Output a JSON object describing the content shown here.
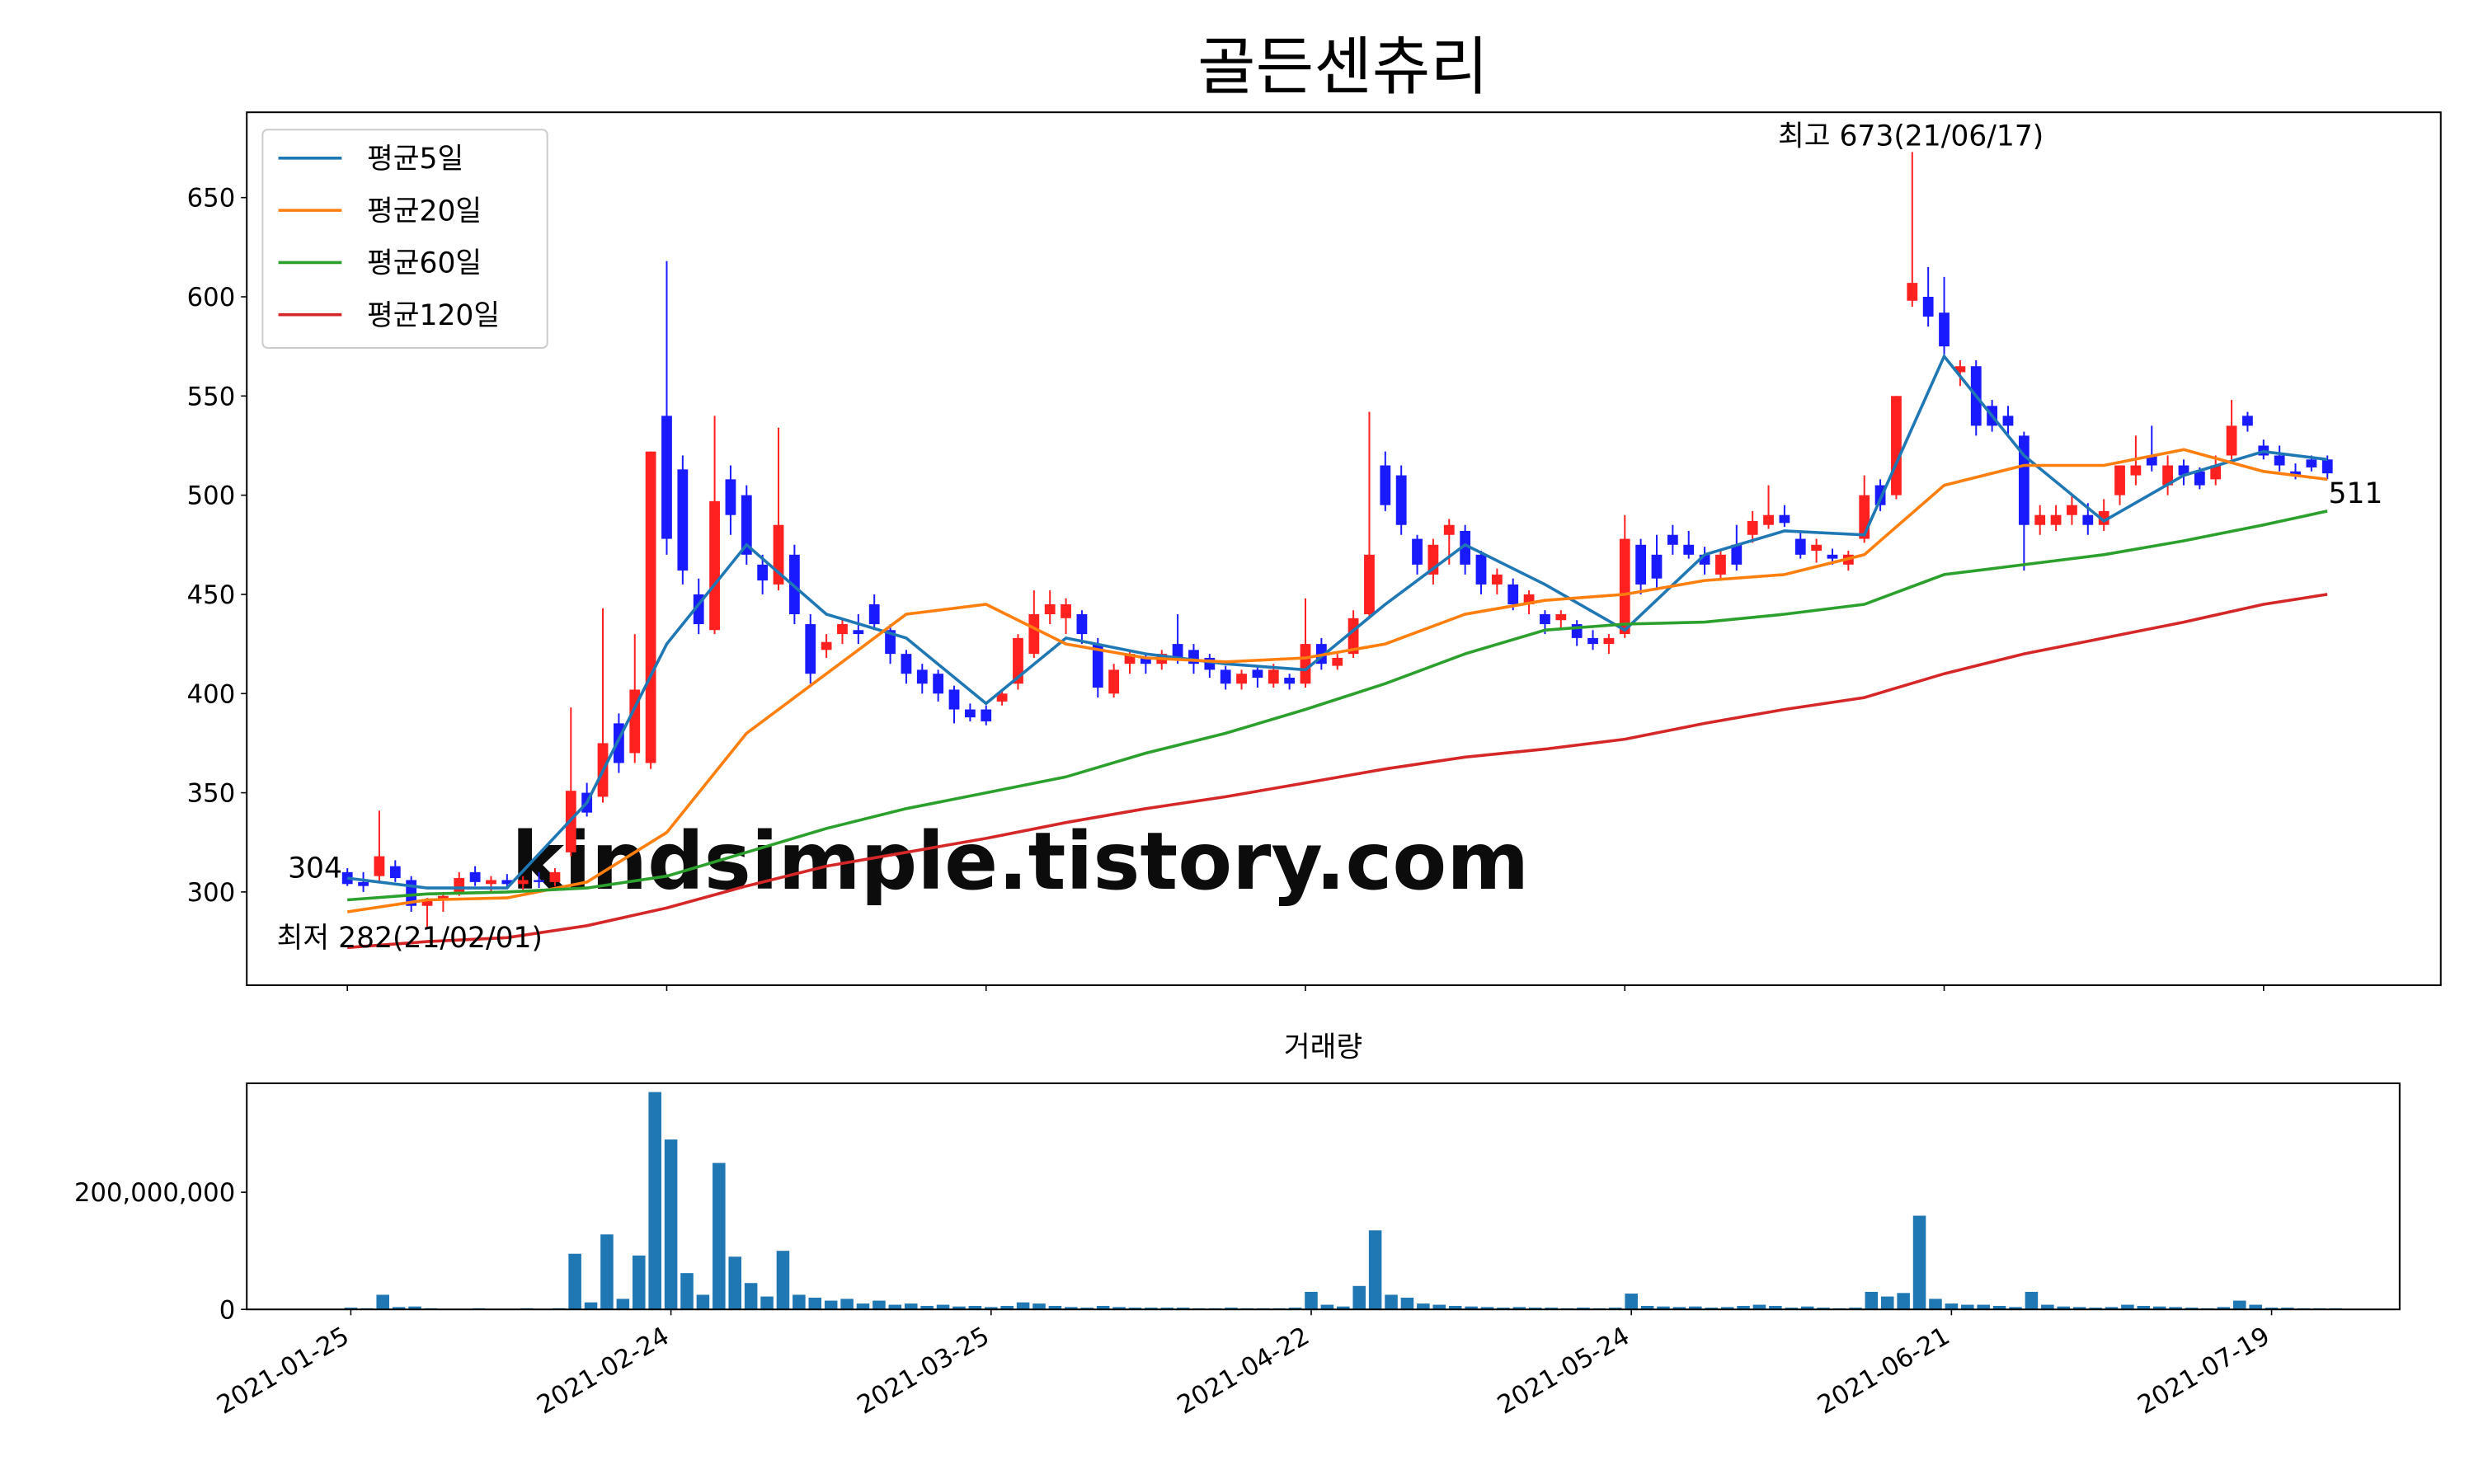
{
  "chart_data": [
    {
      "type": "candlestick",
      "title": "골든센츄리",
      "ohlc": [
        [
          310,
          312,
          303,
          304
        ],
        [
          305,
          310,
          300,
          303
        ],
        [
          308,
          341,
          305,
          318
        ],
        [
          313,
          316,
          305,
          307
        ],
        [
          306,
          308,
          290,
          293
        ],
        [
          293,
          297,
          282,
          296
        ],
        [
          296,
          300,
          290,
          298
        ],
        [
          300,
          310,
          298,
          307
        ],
        [
          310,
          313,
          303,
          305
        ],
        [
          304,
          308,
          300,
          306
        ],
        [
          306,
          309,
          302,
          304
        ],
        [
          304,
          308,
          301,
          306
        ],
        [
          306,
          310,
          302,
          305
        ],
        [
          305,
          312,
          303,
          310
        ],
        [
          320,
          393,
          318,
          351
        ],
        [
          350,
          355,
          338,
          340
        ],
        [
          348,
          443,
          345,
          375
        ],
        [
          385,
          390,
          360,
          365
        ],
        [
          370,
          430,
          365,
          402
        ],
        [
          365,
          522,
          362,
          522
        ],
        [
          540,
          618,
          470,
          478
        ],
        [
          513,
          520,
          455,
          462
        ],
        [
          450,
          458,
          430,
          435
        ],
        [
          432,
          540,
          430,
          497
        ],
        [
          508,
          515,
          480,
          490
        ],
        [
          500,
          505,
          465,
          470
        ],
        [
          465,
          470,
          450,
          457
        ],
        [
          455,
          534,
          452,
          485
        ],
        [
          470,
          475,
          435,
          440
        ],
        [
          435,
          440,
          405,
          410
        ],
        [
          422,
          430,
          418,
          426
        ],
        [
          430,
          438,
          425,
          435
        ],
        [
          432,
          440,
          425,
          430
        ],
        [
          445,
          450,
          432,
          435
        ],
        [
          432,
          435,
          415,
          420
        ],
        [
          420,
          422,
          405,
          410
        ],
        [
          412,
          415,
          400,
          405
        ],
        [
          410,
          412,
          396,
          400
        ],
        [
          402,
          404,
          385,
          392
        ],
        [
          392,
          395,
          386,
          388
        ],
        [
          392,
          394,
          384,
          386
        ],
        [
          396,
          402,
          394,
          400
        ],
        [
          405,
          430,
          402,
          428
        ],
        [
          420,
          452,
          418,
          440
        ],
        [
          440,
          452,
          435,
          445
        ],
        [
          438,
          448,
          430,
          445
        ],
        [
          440,
          442,
          425,
          430
        ],
        [
          425,
          428,
          398,
          403
        ],
        [
          400,
          415,
          398,
          412
        ],
        [
          415,
          422,
          410,
          420
        ],
        [
          418,
          420,
          410,
          415
        ],
        [
          415,
          422,
          412,
          420
        ],
        [
          425,
          440,
          415,
          418
        ],
        [
          422,
          425,
          410,
          415
        ],
        [
          418,
          420,
          408,
          412
        ],
        [
          412,
          414,
          402,
          405
        ],
        [
          405,
          412,
          402,
          410
        ],
        [
          412,
          414,
          403,
          408
        ],
        [
          405,
          415,
          403,
          412
        ],
        [
          408,
          410,
          402,
          405
        ],
        [
          405,
          448,
          403,
          425
        ],
        [
          425,
          428,
          412,
          415
        ],
        [
          414,
          420,
          412,
          418
        ],
        [
          420,
          442,
          418,
          438
        ],
        [
          440,
          542,
          438,
          470
        ],
        [
          515,
          522,
          492,
          495
        ],
        [
          510,
          515,
          480,
          485
        ],
        [
          478,
          480,
          460,
          465
        ],
        [
          460,
          478,
          455,
          475
        ],
        [
          480,
          488,
          465,
          485
        ],
        [
          482,
          485,
          460,
          465
        ],
        [
          470,
          472,
          450,
          455
        ],
        [
          455,
          463,
          450,
          460
        ],
        [
          455,
          458,
          442,
          445
        ],
        [
          445,
          452,
          440,
          450
        ],
        [
          440,
          442,
          430,
          435
        ],
        [
          437,
          442,
          432,
          440
        ],
        [
          435,
          437,
          424,
          428
        ],
        [
          428,
          432,
          422,
          425
        ],
        [
          425,
          430,
          420,
          428
        ],
        [
          430,
          490,
          428,
          478
        ],
        [
          475,
          478,
          450,
          455
        ],
        [
          470,
          480,
          452,
          458
        ],
        [
          480,
          485,
          470,
          475
        ],
        [
          475,
          482,
          468,
          470
        ],
        [
          470,
          474,
          460,
          465
        ],
        [
          460,
          472,
          458,
          470
        ],
        [
          475,
          485,
          462,
          465
        ],
        [
          480,
          492,
          476,
          487
        ],
        [
          485,
          505,
          483,
          490
        ],
        [
          490,
          495,
          484,
          486
        ],
        [
          478,
          482,
          468,
          470
        ],
        [
          472,
          478,
          466,
          475
        ],
        [
          470,
          473,
          465,
          468
        ],
        [
          465,
          472,
          462,
          470
        ],
        [
          478,
          510,
          476,
          500
        ],
        [
          505,
          508,
          492,
          495
        ],
        [
          500,
          550,
          498,
          550
        ],
        [
          598,
          673,
          595,
          607
        ],
        [
          600,
          615,
          585,
          590
        ],
        [
          592,
          610,
          570,
          575
        ],
        [
          562,
          568,
          555,
          565
        ],
        [
          565,
          568,
          530,
          535
        ],
        [
          545,
          548,
          532,
          535
        ],
        [
          540,
          545,
          530,
          535
        ],
        [
          530,
          532,
          462,
          485
        ],
        [
          485,
          495,
          480,
          490
        ],
        [
          485,
          495,
          482,
          490
        ],
        [
          490,
          500,
          485,
          495
        ],
        [
          490,
          496,
          480,
          485
        ],
        [
          485,
          498,
          482,
          492
        ],
        [
          500,
          515,
          495,
          515
        ],
        [
          510,
          530,
          505,
          515
        ],
        [
          520,
          535,
          512,
          515
        ],
        [
          505,
          520,
          500,
          515
        ],
        [
          515,
          518,
          505,
          510
        ],
        [
          512,
          514,
          503,
          505
        ],
        [
          508,
          520,
          505,
          515
        ],
        [
          520,
          548,
          518,
          535
        ],
        [
          540,
          542,
          532,
          535
        ],
        [
          525,
          528,
          518,
          520
        ],
        [
          520,
          525,
          512,
          515
        ],
        [
          512,
          516,
          508,
          510
        ],
        [
          518,
          520,
          512,
          514
        ],
        [
          518,
          520,
          508,
          511
        ]
      ],
      "up_color": "#ff2020",
      "down_color": "#1a1aff",
      "ma_x": [
        0,
        5,
        10,
        15,
        20,
        25,
        30,
        35,
        40,
        45,
        50,
        55,
        60,
        65,
        70,
        75,
        80,
        85,
        90,
        95,
        100,
        105,
        110,
        115,
        120,
        124
      ],
      "series": [
        {
          "name": "평균5일",
          "color": "#1f77b4",
          "values": [
            307,
            302,
            302,
            345,
            425,
            475,
            440,
            428,
            395,
            428,
            420,
            415,
            412,
            445,
            475,
            455,
            432,
            470,
            482,
            480,
            570,
            520,
            487,
            510,
            522,
            518
          ]
        },
        {
          "name": "평균20일",
          "color": "#ff7f0e",
          "values": [
            290,
            296,
            297,
            305,
            330,
            380,
            410,
            440,
            445,
            425,
            418,
            416,
            418,
            425,
            440,
            447,
            450,
            457,
            460,
            470,
            505,
            515,
            515,
            523,
            512,
            508
          ]
        },
        {
          "name": "평균60일",
          "color": "#2ca02c",
          "values": [
            296,
            299,
            300,
            302,
            308,
            320,
            332,
            342,
            350,
            358,
            370,
            380,
            392,
            405,
            420,
            432,
            435,
            436,
            440,
            445,
            460,
            465,
            470,
            477,
            485,
            492
          ]
        },
        {
          "name": "평균120일",
          "color": "#d62728",
          "values": [
            272,
            275,
            277,
            283,
            292,
            303,
            313,
            320,
            327,
            335,
            342,
            348,
            355,
            362,
            368,
            372,
            377,
            385,
            392,
            398,
            410,
            420,
            428,
            436,
            445,
            450
          ]
        }
      ],
      "legend": "upper left",
      "xlim": [
        -6.3,
        131.1
      ],
      "ylim": [
        253,
        693
      ],
      "yticks": [
        300,
        350,
        400,
        450,
        500,
        550,
        600,
        650
      ],
      "annotations": [
        {
          "text": "최고 673(21/06/17)",
          "color": "#ff0000"
        },
        {
          "text": "최저 282(21/02/01)",
          "color": "#0000ff"
        },
        {
          "text": "304",
          "color": "#000000"
        },
        {
          "text": "511",
          "color": "#000000"
        }
      ],
      "watermark": "kindsimple.tistory.com"
    },
    {
      "type": "bar",
      "title": "거래량",
      "color": "#1f77b4",
      "values": [
        3000000,
        2000000,
        25000000,
        4000000,
        5000000,
        2000000,
        1000000,
        1000000,
        2000000,
        1000000,
        1000000,
        2000000,
        1000000,
        2000000,
        95000000,
        12000000,
        128000000,
        18000000,
        92000000,
        371000000,
        290000000,
        62000000,
        25000000,
        250000000,
        90000000,
        45000000,
        22000000,
        100000000,
        25000000,
        20000000,
        15000000,
        18000000,
        10000000,
        15000000,
        8000000,
        10000000,
        6000000,
        8000000,
        5000000,
        6000000,
        4000000,
        6000000,
        12000000,
        10000000,
        6000000,
        4000000,
        3000000,
        6000000,
        4000000,
        3000000,
        3000000,
        3000000,
        3000000,
        2000000,
        2000000,
        3000000,
        2000000,
        2000000,
        2000000,
        3000000,
        30000000,
        8000000,
        5000000,
        40000000,
        135000000,
        25000000,
        20000000,
        10000000,
        8000000,
        6000000,
        5000000,
        4000000,
        3000000,
        4000000,
        3000000,
        3000000,
        2000000,
        3000000,
        2000000,
        3000000,
        27000000,
        6000000,
        5000000,
        4000000,
        5000000,
        3000000,
        4000000,
        6000000,
        8000000,
        6000000,
        3000000,
        5000000,
        3000000,
        2000000,
        3000000,
        30000000,
        22000000,
        28000000,
        160000000,
        18000000,
        10000000,
        8000000,
        8000000,
        6000000,
        4000000,
        30000000,
        8000000,
        5000000,
        4000000,
        3000000,
        4000000,
        8000000,
        6000000,
        5000000,
        4000000,
        3000000,
        2000000,
        4000000,
        15000000,
        8000000,
        3000000,
        3000000,
        2000000,
        2000000,
        2000000
      ],
      "xlim": [
        -6.5,
        128.0
      ],
      "ylim": [
        0,
        386000000
      ],
      "yticks": [
        0,
        {
          "value": 200000000,
          "label": "200,000,000"
        }
      ],
      "xticks": [
        {
          "value": 0,
          "label": "2021-01-25"
        },
        {
          "value": 20,
          "label": "2021-02-24"
        },
        {
          "value": 40,
          "label": "2021-03-25"
        },
        {
          "value": 60,
          "label": "2021-04-22"
        },
        {
          "value": 80,
          "label": "2021-05-24"
        },
        {
          "value": 100,
          "label": "2021-06-21"
        },
        {
          "value": 120,
          "label": "2021-07-19"
        }
      ]
    }
  ]
}
